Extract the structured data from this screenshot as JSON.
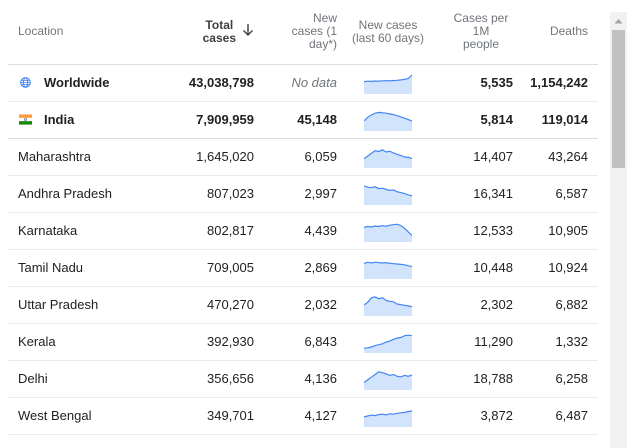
{
  "header": {
    "location": "Location",
    "total_cases_line1": "Total",
    "total_cases_line2": "cases",
    "new_cases_line1": "New",
    "new_cases_line2": "cases (1",
    "new_cases_line3": "day*)",
    "chart_line1": "New cases",
    "chart_line2": "(last 60 days)",
    "per_million_line1": "Cases per",
    "per_million_line2": "1M",
    "per_million_line3": "people",
    "deaths": "Deaths",
    "sort_icon": "arrow-down-icon"
  },
  "rows": [
    {
      "location": "Worldwide",
      "total": "43,038,798",
      "new": "No data",
      "per_million": "5,535",
      "deaths": "1,154,242",
      "icon": "globe-icon",
      "trend": [
        0.42,
        0.4,
        0.41,
        0.39,
        0.4,
        0.38,
        0.37,
        0.38,
        0.36,
        0.35,
        0.33,
        0.3,
        0.25,
        0.05
      ]
    },
    {
      "location": "India",
      "total": "7,909,959",
      "new": "45,148",
      "per_million": "5,814",
      "deaths": "119,014",
      "icon": "india-flag-icon",
      "trend": [
        0.55,
        0.35,
        0.22,
        0.12,
        0.08,
        0.1,
        0.12,
        0.16,
        0.2,
        0.26,
        0.33,
        0.4,
        0.48,
        0.56
      ]
    },
    {
      "location": "Maharashtra",
      "total": "1,645,020",
      "new": "6,059",
      "per_million": "14,407",
      "deaths": "43,264",
      "trend": [
        0.6,
        0.45,
        0.3,
        0.15,
        0.2,
        0.1,
        0.22,
        0.18,
        0.28,
        0.35,
        0.42,
        0.5,
        0.52,
        0.58
      ]
    },
    {
      "location": "Andhra Pradesh",
      "total": "807,023",
      "new": "2,997",
      "per_million": "16,341",
      "deaths": "6,587",
      "trend": [
        0.05,
        0.12,
        0.15,
        0.1,
        0.2,
        0.18,
        0.25,
        0.3,
        0.28,
        0.38,
        0.42,
        0.48,
        0.55,
        0.6
      ]
    },
    {
      "location": "Karnataka",
      "total": "802,817",
      "new": "4,439",
      "per_million": "12,533",
      "deaths": "10,905",
      "trend": [
        0.3,
        0.25,
        0.28,
        0.22,
        0.25,
        0.2,
        0.24,
        0.18,
        0.15,
        0.12,
        0.2,
        0.35,
        0.55,
        0.75
      ]
    },
    {
      "location": "Tamil Nadu",
      "total": "709,005",
      "new": "2,869",
      "per_million": "10,448",
      "deaths": "10,924",
      "trend": [
        0.25,
        0.18,
        0.22,
        0.18,
        0.2,
        0.22,
        0.2,
        0.24,
        0.26,
        0.28,
        0.3,
        0.32,
        0.38,
        0.42
      ]
    },
    {
      "location": "Uttar Pradesh",
      "total": "470,270",
      "new": "2,032",
      "per_million": "2,302",
      "deaths": "6,882",
      "trend": [
        0.5,
        0.35,
        0.1,
        0.05,
        0.15,
        0.1,
        0.25,
        0.3,
        0.32,
        0.45,
        0.48,
        0.52,
        0.55,
        0.6
      ]
    },
    {
      "location": "Kerala",
      "total": "392,930",
      "new": "6,843",
      "per_million": "11,290",
      "deaths": "1,332",
      "trend": [
        0.85,
        0.82,
        0.78,
        0.7,
        0.65,
        0.6,
        0.5,
        0.45,
        0.35,
        0.28,
        0.25,
        0.15,
        0.12,
        0.15
      ]
    },
    {
      "location": "Delhi",
      "total": "356,656",
      "new": "4,136",
      "per_million": "18,788",
      "deaths": "6,258",
      "trend": [
        0.7,
        0.55,
        0.4,
        0.25,
        0.1,
        0.15,
        0.22,
        0.3,
        0.25,
        0.35,
        0.38,
        0.3,
        0.35,
        0.28
      ]
    },
    {
      "location": "West Bengal",
      "total": "349,701",
      "new": "4,127",
      "per_million": "3,872",
      "deaths": "6,487",
      "trend": [
        0.55,
        0.5,
        0.45,
        0.48,
        0.42,
        0.4,
        0.44,
        0.38,
        0.4,
        0.35,
        0.32,
        0.3,
        0.25,
        0.22
      ]
    }
  ],
  "colors": {
    "spark_line": "#4285f4",
    "spark_fill": "#d2e3fc",
    "header_text": "#70757a",
    "text": "#202124",
    "globe": "#4285f4",
    "flag_saffron": "#ff9933",
    "flag_green": "#138808"
  }
}
